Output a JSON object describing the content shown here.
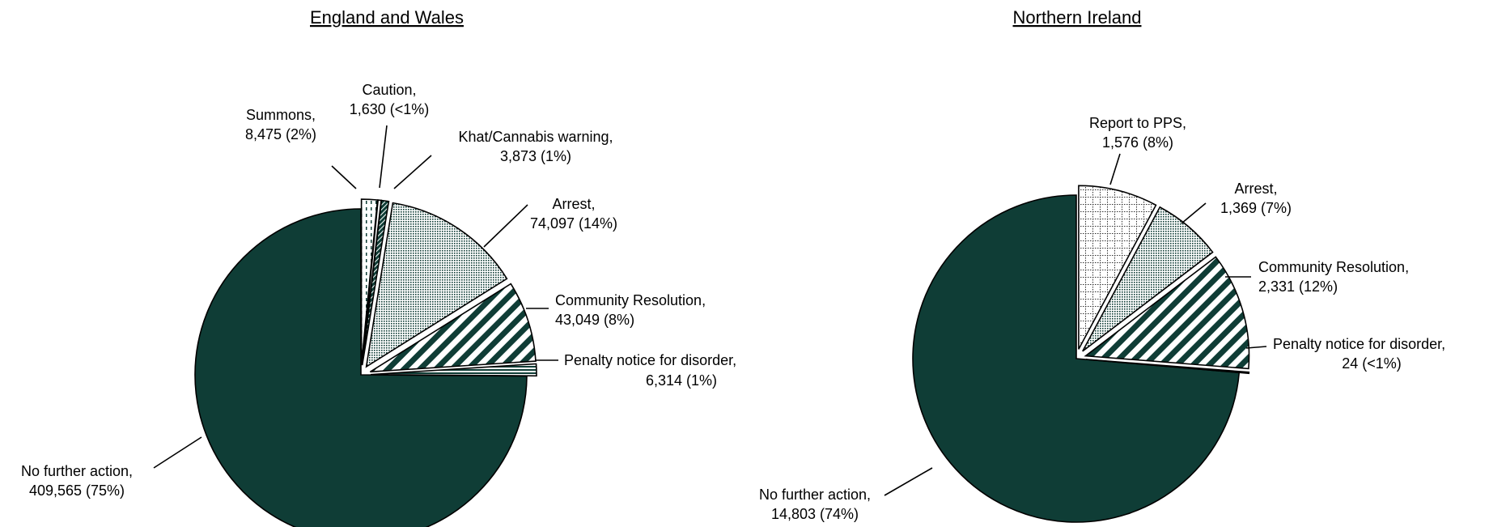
{
  "colors": {
    "dark_green": "#0f3d36",
    "outline": "#000000",
    "background": "#ffffff"
  },
  "chart_data": [
    {
      "type": "pie",
      "title": "England and Wales",
      "slices": [
        {
          "label": "No further action,",
          "value": 409565,
          "display": "409,565 (75%)",
          "pattern": "solid"
        },
        {
          "label": "Summons,",
          "value": 8475,
          "display": "8,475 (2%)",
          "pattern": "dashed-lines"
        },
        {
          "label": "Caution,",
          "value": 1630,
          "display": "1,630 (<1%)",
          "pattern": "white"
        },
        {
          "label": "Khat/Cannabis warning,",
          "value": 3873,
          "display": "3,873 (1%)",
          "pattern": "dark-diagonal"
        },
        {
          "label": "Arrest,",
          "value": 74097,
          "display": "74,097 (14%)",
          "pattern": "fine-dots"
        },
        {
          "label": "Community Resolution,",
          "value": 43049,
          "display": "43,049 (8%)",
          "pattern": "wide-diagonal"
        },
        {
          "label": "Penalty notice for disorder,",
          "value": 6314,
          "display": "6,314 (1%)",
          "pattern": "horizontal"
        }
      ]
    },
    {
      "type": "pie",
      "title": "Northern Ireland",
      "slices": [
        {
          "label": "No further action,",
          "value": 14803,
          "display": "14,803 (74%)",
          "pattern": "solid"
        },
        {
          "label": "Report to PPS,",
          "value": 1576,
          "display": "1,576 (8%)",
          "pattern": "grid"
        },
        {
          "label": "Arrest,",
          "value": 1369,
          "display": "1,369 (7%)",
          "pattern": "fine-dots"
        },
        {
          "label": "Community Resolution,",
          "value": 2331,
          "display": "2,331 (12%)",
          "pattern": "wide-diagonal"
        },
        {
          "label": "Penalty notice for disorder,",
          "value": 24,
          "display": "24 (<1%)",
          "pattern": "horizontal"
        }
      ]
    }
  ]
}
